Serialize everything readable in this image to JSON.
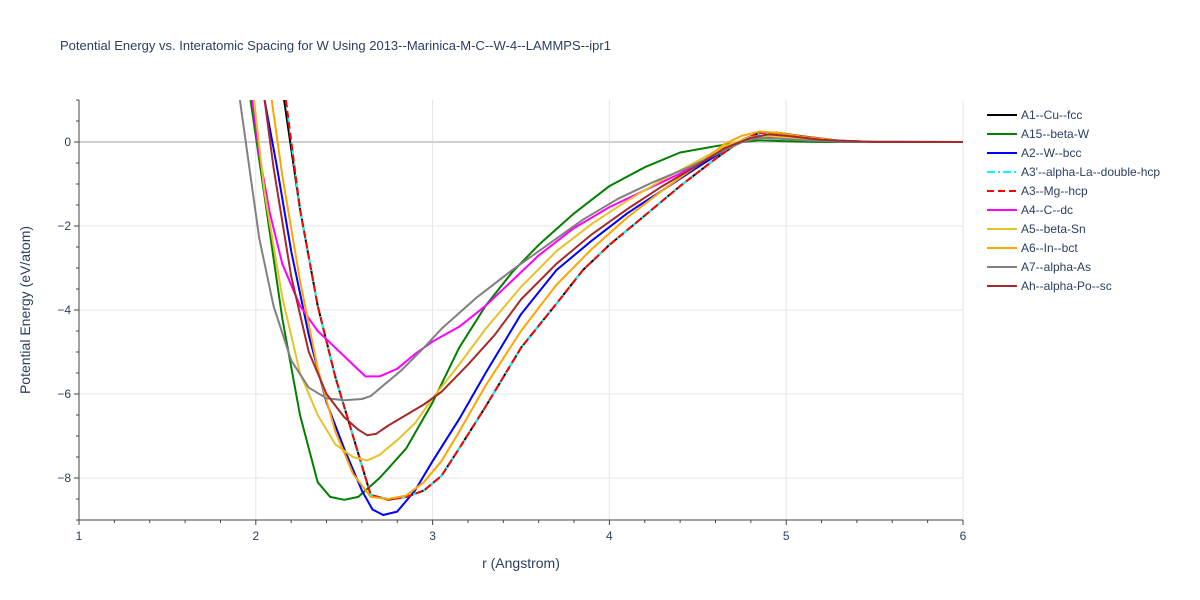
{
  "chart_data": {
    "type": "line",
    "title": "Potential Energy vs. Interatomic Spacing for W Using 2013--Marinica-M-C--W-4--LAMMPS--ipr1",
    "xlabel": "r (Angstrom)",
    "ylabel": "Potential Energy (eV/atom)",
    "xlim": [
      1,
      6
    ],
    "ylim": [
      -9,
      1
    ],
    "xticks": [
      1,
      2,
      3,
      4,
      5,
      6
    ],
    "yticks": [
      0,
      -2,
      -4,
      -6,
      -8
    ],
    "grid": true,
    "legend_position": "right",
    "series": [
      {
        "name": "A1--Cu--fcc",
        "color": "#000000",
        "dash": "solid",
        "points": [
          [
            2.16,
            1.0
          ],
          [
            2.25,
            -1.6
          ],
          [
            2.35,
            -3.9
          ],
          [
            2.45,
            -5.6
          ],
          [
            2.55,
            -7.0
          ],
          [
            2.65,
            -8.4
          ],
          [
            2.75,
            -8.52
          ],
          [
            2.85,
            -8.45
          ],
          [
            2.95,
            -8.3
          ],
          [
            3.05,
            -7.95
          ],
          [
            3.15,
            -7.3
          ],
          [
            3.3,
            -6.3
          ],
          [
            3.5,
            -4.9
          ],
          [
            3.7,
            -3.85
          ],
          [
            3.85,
            -3.05
          ],
          [
            4.0,
            -2.45
          ],
          [
            4.2,
            -1.75
          ],
          [
            4.4,
            -1.05
          ],
          [
            4.6,
            -0.4
          ],
          [
            4.75,
            0.05
          ],
          [
            4.85,
            0.22
          ],
          [
            4.95,
            0.22
          ],
          [
            5.1,
            0.13
          ],
          [
            5.3,
            0.03
          ],
          [
            5.5,
            0.0
          ],
          [
            6.0,
            0.0
          ]
        ]
      },
      {
        "name": "A15--beta-W",
        "color": "#008000",
        "dash": "solid",
        "points": [
          [
            1.97,
            1.0
          ],
          [
            2.05,
            -1.3
          ],
          [
            2.15,
            -4.2
          ],
          [
            2.25,
            -6.5
          ],
          [
            2.35,
            -8.1
          ],
          [
            2.42,
            -8.45
          ],
          [
            2.5,
            -8.52
          ],
          [
            2.58,
            -8.45
          ],
          [
            2.7,
            -8.0
          ],
          [
            2.85,
            -7.3
          ],
          [
            3.0,
            -6.2
          ],
          [
            3.15,
            -4.9
          ],
          [
            3.3,
            -3.9
          ],
          [
            3.45,
            -3.1
          ],
          [
            3.6,
            -2.45
          ],
          [
            3.8,
            -1.7
          ],
          [
            4.0,
            -1.05
          ],
          [
            4.2,
            -0.6
          ],
          [
            4.4,
            -0.25
          ],
          [
            4.6,
            -0.1
          ],
          [
            4.75,
            0.0
          ],
          [
            4.85,
            0.04
          ],
          [
            5.0,
            0.02
          ],
          [
            5.2,
            0.0
          ],
          [
            6.0,
            0.0
          ]
        ]
      },
      {
        "name": "A2--W--bcc",
        "color": "#0000ff",
        "dash": "solid",
        "points": [
          [
            2.05,
            1.0
          ],
          [
            2.12,
            -0.6
          ],
          [
            2.2,
            -2.6
          ],
          [
            2.3,
            -4.6
          ],
          [
            2.4,
            -6.2
          ],
          [
            2.5,
            -7.3
          ],
          [
            2.6,
            -8.3
          ],
          [
            2.66,
            -8.75
          ],
          [
            2.72,
            -8.88
          ],
          [
            2.8,
            -8.8
          ],
          [
            2.9,
            -8.3
          ],
          [
            3.0,
            -7.6
          ],
          [
            3.15,
            -6.6
          ],
          [
            3.3,
            -5.5
          ],
          [
            3.5,
            -4.1
          ],
          [
            3.7,
            -3.05
          ],
          [
            3.9,
            -2.35
          ],
          [
            4.1,
            -1.7
          ],
          [
            4.3,
            -1.15
          ],
          [
            4.5,
            -0.6
          ],
          [
            4.65,
            -0.2
          ],
          [
            4.8,
            0.1
          ],
          [
            4.9,
            0.14
          ],
          [
            5.0,
            0.1
          ],
          [
            5.2,
            0.03
          ],
          [
            5.5,
            0.0
          ],
          [
            6.0,
            0.0
          ]
        ]
      },
      {
        "name": "A3'--alpha-La--double-hcp",
        "color": "#00ffff",
        "dash": "dashdot",
        "points": [
          [
            2.17,
            1.0
          ],
          [
            2.25,
            -1.6
          ],
          [
            2.35,
            -3.9
          ],
          [
            2.45,
            -5.6
          ],
          [
            2.55,
            -7.0
          ],
          [
            2.65,
            -8.4
          ],
          [
            2.75,
            -8.5
          ],
          [
            2.85,
            -8.45
          ],
          [
            2.95,
            -8.3
          ],
          [
            3.05,
            -7.95
          ],
          [
            3.15,
            -7.3
          ],
          [
            3.3,
            -6.3
          ],
          [
            3.5,
            -4.9
          ],
          [
            3.7,
            -3.85
          ],
          [
            3.85,
            -3.05
          ],
          [
            4.0,
            -2.45
          ],
          [
            4.2,
            -1.75
          ],
          [
            4.4,
            -1.05
          ],
          [
            4.6,
            -0.4
          ],
          [
            4.75,
            0.05
          ],
          [
            4.85,
            0.2
          ],
          [
            4.95,
            0.2
          ],
          [
            5.1,
            0.12
          ],
          [
            5.3,
            0.03
          ],
          [
            5.5,
            0.0
          ],
          [
            6.0,
            0.0
          ]
        ]
      },
      {
        "name": "A3--Mg--hcp",
        "color": "#ff0000",
        "dash": "dash",
        "points": [
          [
            2.17,
            1.0
          ],
          [
            2.25,
            -1.6
          ],
          [
            2.35,
            -3.9
          ],
          [
            2.45,
            -5.6
          ],
          [
            2.55,
            -7.0
          ],
          [
            2.65,
            -8.4
          ],
          [
            2.75,
            -8.52
          ],
          [
            2.85,
            -8.45
          ],
          [
            2.95,
            -8.3
          ],
          [
            3.05,
            -7.95
          ],
          [
            3.15,
            -7.3
          ],
          [
            3.3,
            -6.3
          ],
          [
            3.5,
            -4.9
          ],
          [
            3.7,
            -3.85
          ],
          [
            3.85,
            -3.05
          ],
          [
            4.0,
            -2.45
          ],
          [
            4.2,
            -1.75
          ],
          [
            4.4,
            -1.05
          ],
          [
            4.6,
            -0.4
          ],
          [
            4.75,
            0.05
          ],
          [
            4.85,
            0.22
          ],
          [
            4.95,
            0.22
          ],
          [
            5.1,
            0.13
          ],
          [
            5.3,
            0.03
          ],
          [
            5.5,
            0.0
          ],
          [
            6.0,
            0.0
          ]
        ]
      },
      {
        "name": "A4--C--dc",
        "color": "#ff00ff",
        "dash": "solid",
        "points": [
          [
            1.98,
            1.0
          ],
          [
            2.02,
            -0.3
          ],
          [
            2.08,
            -1.7
          ],
          [
            2.15,
            -2.9
          ],
          [
            2.25,
            -3.9
          ],
          [
            2.35,
            -4.5
          ],
          [
            2.45,
            -4.9
          ],
          [
            2.55,
            -5.3
          ],
          [
            2.62,
            -5.58
          ],
          [
            2.7,
            -5.58
          ],
          [
            2.8,
            -5.4
          ],
          [
            2.9,
            -5.05
          ],
          [
            3.0,
            -4.75
          ],
          [
            3.15,
            -4.4
          ],
          [
            3.3,
            -3.9
          ],
          [
            3.45,
            -3.3
          ],
          [
            3.6,
            -2.7
          ],
          [
            3.8,
            -2.05
          ],
          [
            4.0,
            -1.55
          ],
          [
            4.2,
            -1.15
          ],
          [
            4.4,
            -0.75
          ],
          [
            4.6,
            -0.3
          ],
          [
            4.75,
            0.05
          ],
          [
            4.85,
            0.15
          ],
          [
            4.95,
            0.12
          ],
          [
            5.1,
            0.06
          ],
          [
            5.3,
            0.01
          ],
          [
            6.0,
            0.0
          ]
        ]
      },
      {
        "name": "A5--beta-Sn",
        "color": "#e6c229",
        "dash": "solid",
        "points": [
          [
            1.99,
            1.0
          ],
          [
            2.05,
            -1.2
          ],
          [
            2.15,
            -3.7
          ],
          [
            2.25,
            -5.5
          ],
          [
            2.35,
            -6.5
          ],
          [
            2.45,
            -7.2
          ],
          [
            2.55,
            -7.5
          ],
          [
            2.63,
            -7.58
          ],
          [
            2.7,
            -7.45
          ],
          [
            2.8,
            -7.1
          ],
          [
            2.9,
            -6.7
          ],
          [
            3.0,
            -6.1
          ],
          [
            3.15,
            -5.3
          ],
          [
            3.3,
            -4.45
          ],
          [
            3.5,
            -3.45
          ],
          [
            3.7,
            -2.6
          ],
          [
            3.9,
            -1.95
          ],
          [
            4.1,
            -1.4
          ],
          [
            4.3,
            -0.9
          ],
          [
            4.5,
            -0.45
          ],
          [
            4.65,
            -0.1
          ],
          [
            4.8,
            0.12
          ],
          [
            4.9,
            0.15
          ],
          [
            5.0,
            0.1
          ],
          [
            5.2,
            0.03
          ],
          [
            5.5,
            0.0
          ],
          [
            6.0,
            0.0
          ]
        ]
      },
      {
        "name": "A6--In--bct",
        "color": "#ffa500",
        "dash": "solid",
        "points": [
          [
            2.09,
            1.0
          ],
          [
            2.15,
            -0.8
          ],
          [
            2.25,
            -3.3
          ],
          [
            2.35,
            -5.4
          ],
          [
            2.45,
            -6.9
          ],
          [
            2.55,
            -7.9
          ],
          [
            2.65,
            -8.45
          ],
          [
            2.75,
            -8.5
          ],
          [
            2.85,
            -8.42
          ],
          [
            2.95,
            -8.1
          ],
          [
            3.05,
            -7.6
          ],
          [
            3.15,
            -6.9
          ],
          [
            3.3,
            -5.8
          ],
          [
            3.5,
            -4.5
          ],
          [
            3.7,
            -3.4
          ],
          [
            3.9,
            -2.55
          ],
          [
            4.1,
            -1.8
          ],
          [
            4.3,
            -1.15
          ],
          [
            4.5,
            -0.55
          ],
          [
            4.65,
            -0.05
          ],
          [
            4.75,
            0.15
          ],
          [
            4.85,
            0.25
          ],
          [
            4.95,
            0.22
          ],
          [
            5.1,
            0.12
          ],
          [
            5.3,
            0.03
          ],
          [
            5.5,
            0.0
          ],
          [
            6.0,
            0.0
          ]
        ]
      },
      {
        "name": "A7--alpha-As",
        "color": "#808080",
        "dash": "solid",
        "points": [
          [
            1.91,
            1.0
          ],
          [
            1.96,
            -0.5
          ],
          [
            2.02,
            -2.3
          ],
          [
            2.1,
            -3.9
          ],
          [
            2.2,
            -5.2
          ],
          [
            2.3,
            -5.85
          ],
          [
            2.4,
            -6.1
          ],
          [
            2.5,
            -6.15
          ],
          [
            2.6,
            -6.12
          ],
          [
            2.65,
            -6.05
          ],
          [
            2.72,
            -5.8
          ],
          [
            2.82,
            -5.45
          ],
          [
            2.95,
            -4.9
          ],
          [
            3.05,
            -4.45
          ],
          [
            3.25,
            -3.7
          ],
          [
            3.45,
            -3.05
          ],
          [
            3.65,
            -2.45
          ],
          [
            3.85,
            -1.85
          ],
          [
            4.05,
            -1.35
          ],
          [
            4.25,
            -0.95
          ],
          [
            4.45,
            -0.6
          ],
          [
            4.6,
            -0.3
          ],
          [
            4.75,
            0.0
          ],
          [
            4.85,
            0.1
          ],
          [
            4.95,
            0.08
          ],
          [
            5.1,
            0.04
          ],
          [
            5.3,
            0.01
          ],
          [
            6.0,
            0.0
          ]
        ]
      },
      {
        "name": "Ah--alpha-Po--sc",
        "color": "#a52a2a",
        "dash": "solid",
        "points": [
          [
            2.05,
            1.0
          ],
          [
            2.1,
            -0.6
          ],
          [
            2.2,
            -3.2
          ],
          [
            2.3,
            -5.0
          ],
          [
            2.4,
            -6.0
          ],
          [
            2.5,
            -6.55
          ],
          [
            2.58,
            -6.85
          ],
          [
            2.63,
            -6.98
          ],
          [
            2.68,
            -6.95
          ],
          [
            2.75,
            -6.75
          ],
          [
            2.85,
            -6.5
          ],
          [
            2.95,
            -6.25
          ],
          [
            3.05,
            -5.95
          ],
          [
            3.2,
            -5.3
          ],
          [
            3.35,
            -4.6
          ],
          [
            3.5,
            -3.75
          ],
          [
            3.7,
            -2.9
          ],
          [
            3.9,
            -2.2
          ],
          [
            4.1,
            -1.6
          ],
          [
            4.3,
            -1.05
          ],
          [
            4.5,
            -0.55
          ],
          [
            4.65,
            -0.15
          ],
          [
            4.8,
            0.1
          ],
          [
            4.9,
            0.18
          ],
          [
            5.0,
            0.15
          ],
          [
            5.2,
            0.05
          ],
          [
            5.5,
            0.0
          ],
          [
            6.0,
            0.0
          ]
        ]
      }
    ]
  }
}
